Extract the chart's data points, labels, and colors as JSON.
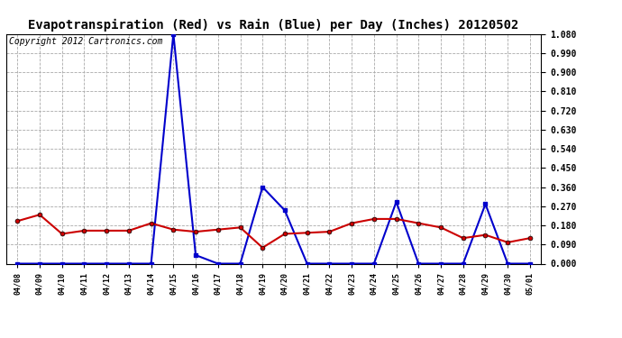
{
  "title": "Evapotranspiration (Red) vs Rain (Blue) per Day (Inches) 20120502",
  "copyright": "Copyright 2012 Cartronics.com",
  "x_labels": [
    "04/08",
    "04/09",
    "04/10",
    "04/11",
    "04/12",
    "04/13",
    "04/14",
    "04/15",
    "04/16",
    "04/17",
    "04/18",
    "04/19",
    "04/20",
    "04/21",
    "04/22",
    "04/23",
    "04/24",
    "04/25",
    "04/26",
    "04/27",
    "04/28",
    "04/29",
    "04/30",
    "05/01"
  ],
  "red_data": [
    0.2,
    0.23,
    0.14,
    0.155,
    0.155,
    0.155,
    0.19,
    0.16,
    0.15,
    0.16,
    0.17,
    0.075,
    0.14,
    0.145,
    0.15,
    0.19,
    0.21,
    0.21,
    0.19,
    0.17,
    0.12,
    0.135,
    0.1,
    0.12
  ],
  "blue_data": [
    0.0,
    0.0,
    0.0,
    0.0,
    0.0,
    0.0,
    0.0,
    1.08,
    0.04,
    0.0,
    0.0,
    0.36,
    0.25,
    0.0,
    0.0,
    0.0,
    0.0,
    0.29,
    0.0,
    0.0,
    0.0,
    0.28,
    0.0,
    0.0
  ],
  "ylim": [
    0.0,
    1.08
  ],
  "yticks": [
    0.0,
    0.09,
    0.18,
    0.27,
    0.36,
    0.45,
    0.54,
    0.63,
    0.72,
    0.81,
    0.9,
    0.99,
    1.08
  ],
  "red_color": "#cc0000",
  "blue_color": "#0000cc",
  "bg_color": "#ffffff",
  "grid_color": "#aaaaaa",
  "title_fontsize": 10,
  "copyright_fontsize": 7
}
